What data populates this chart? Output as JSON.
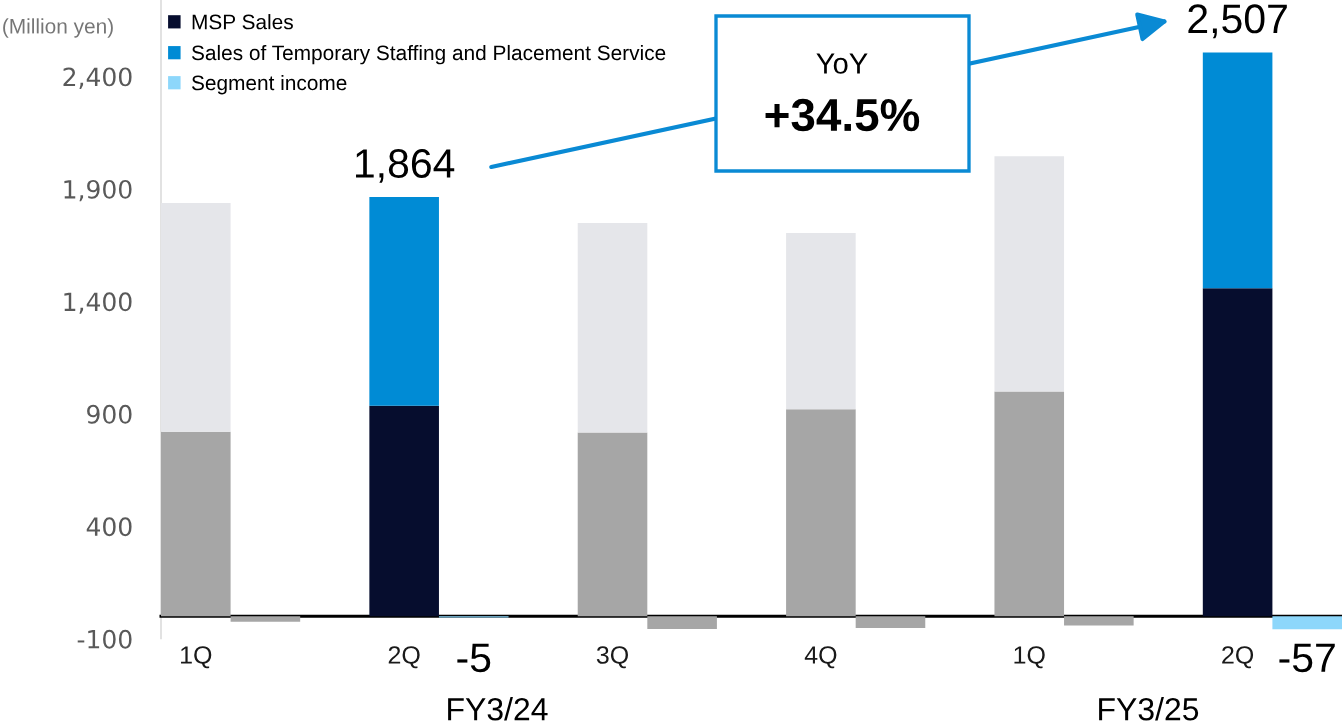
{
  "chart_data": [
    {
      "type": "bar",
      "stacked": true,
      "ylabel": "(Million yen)",
      "categories": [
        "1Q",
        "2Q",
        "3Q",
        "4Q",
        "1Q",
        "2Q"
      ],
      "series": [
        {
          "name": "MSP Sales",
          "color": "#060d2e",
          "colors": [
            "#a6a6a6",
            "#060d2e",
            "#a6a6a6",
            "#a6a6a6",
            "#a6a6a6",
            "#060d2e"
          ],
          "values": [
            821,
            936,
            817,
            920,
            999,
            1458
          ]
        },
        {
          "name": "Sales of Temporary Staffing and Placement Service",
          "color": "#008bd5",
          "colors": [
            "#e5e6ea",
            "#008bd5",
            "#e5e6ea",
            "#e5e6ea",
            "#e5e6ea",
            "#008bd5"
          ],
          "values": [
            1016,
            928,
            932,
            784,
            1046,
            1049
          ]
        }
      ],
      "totals": [
        null,
        "1,864",
        null,
        null,
        null,
        "2,507"
      ],
      "ylim": [
        -100,
        2740
      ],
      "yticks": [
        -100,
        400,
        900,
        {
          "value": 1400,
          "label": "1,400"
        },
        {
          "value": 1900,
          "label": "1,900"
        },
        {
          "value": 2400,
          "label": "2,400"
        }
      ],
      "legend": "top left",
      "annotations": [
        "YoY",
        "+34.5%",
        "FY3/24",
        "FY3/25"
      ]
    },
    {
      "type": "bar",
      "categories": [
        null,
        null,
        null,
        null,
        null,
        null
      ],
      "series": [
        {
          "name": "Segment income",
          "color": "#8dd7fb",
          "colors": [
            "#a6a6a6",
            "#8dd7fb",
            "#a6a6a6",
            "#a6a6a6",
            "#a6a6a6",
            "#8dd7fb"
          ],
          "values": [
            -24,
            -5,
            -56,
            -52,
            -41,
            -57
          ],
          "value_labels": [
            null,
            "-5",
            null,
            null,
            null,
            "-57"
          ]
        }
      ],
      "legend": "top left"
    }
  ]
}
